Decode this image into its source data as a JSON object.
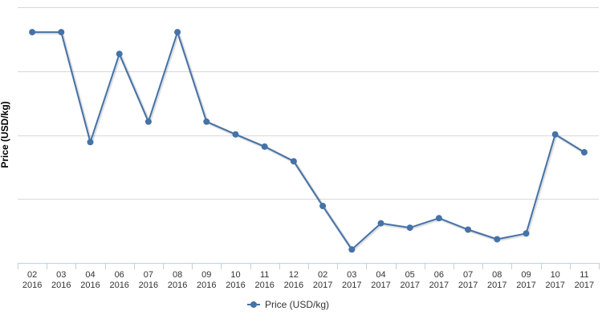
{
  "chart_data": {
    "type": "line",
    "title": "",
    "xlabel": "",
    "ylabel": "Price (USD/kg)",
    "categories": [
      [
        "02",
        "2016"
      ],
      [
        "03",
        "2016"
      ],
      [
        "04",
        "2016"
      ],
      [
        "06",
        "2016"
      ],
      [
        "07",
        "2016"
      ],
      [
        "08",
        "2016"
      ],
      [
        "09",
        "2016"
      ],
      [
        "10",
        "2016"
      ],
      [
        "11",
        "2016"
      ],
      [
        "12",
        "2016"
      ],
      [
        "02",
        "2017"
      ],
      [
        "03",
        "2017"
      ],
      [
        "04",
        "2017"
      ],
      [
        "05",
        "2017"
      ],
      [
        "06",
        "2017"
      ],
      [
        "07",
        "2017"
      ],
      [
        "08",
        "2017"
      ],
      [
        "09",
        "2017"
      ],
      [
        "10",
        "2017"
      ],
      [
        "11",
        "2017"
      ]
    ],
    "series": [
      {
        "name": "Price (USD/kg)",
        "color": "#4572a7",
        "values": [
          3.61,
          3.61,
          1.89,
          3.27,
          2.21,
          3.61,
          2.21,
          2.01,
          1.82,
          1.59,
          0.89,
          0.21,
          0.62,
          0.55,
          0.7,
          0.52,
          0.37,
          0.46,
          2.01,
          1.73
        ]
      }
    ],
    "ylim": [
      0,
      4
    ],
    "y_gridlines": [
      0,
      1,
      2,
      3,
      4
    ],
    "y_tick_labels_shown": false,
    "grid": true,
    "legend_position": "bottom-center"
  }
}
